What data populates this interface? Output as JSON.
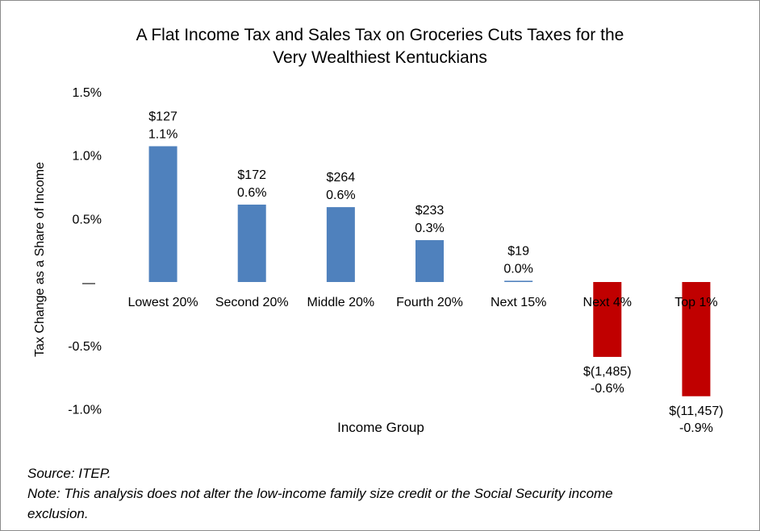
{
  "chart_data": {
    "type": "bar",
    "title_line1": "A Flat Income Tax and Sales Tax on Groceries Cuts Taxes for the",
    "title_line2": "Very Wealthiest Kentuckians",
    "xlabel": "Income Group",
    "ylabel": "Tax Change as a Share of Income",
    "categories": [
      "Lowest 20%",
      "Second 20%",
      "Middle 20%",
      "Fourth 20%",
      "Next 15%",
      "Next 4%",
      "Top 1%"
    ],
    "values": [
      1.07,
      0.61,
      0.59,
      0.33,
      0.01,
      -0.59,
      -0.9
    ],
    "data_labels": [
      [
        "$127",
        "1.1%"
      ],
      [
        "$172",
        "0.6%"
      ],
      [
        "$264",
        "0.6%"
      ],
      [
        "$233",
        "0.3%"
      ],
      [
        "$19",
        "0.0%"
      ],
      [
        "$(1,485)",
        "-0.6%"
      ],
      [
        "$(11,457)",
        "-0.9%"
      ]
    ],
    "yticks": [
      1.5,
      1.0,
      0.5,
      0,
      -0.5,
      -1.0
    ],
    "ytick_labels": [
      "1.5%",
      "1.0%",
      "0.5%",
      "—",
      "-0.5%",
      "-1.0%"
    ],
    "ylim": [
      -1.0,
      1.5
    ],
    "colors": {
      "positive": "#4f81bd",
      "negative": "#c00000"
    },
    "grid": false,
    "legend": "none"
  },
  "notes": {
    "source": "Source: ITEP.",
    "note_line1": "Note: This analysis does not alter the low-income family size credit or the Social Security income",
    "note_line2": "exclusion."
  }
}
